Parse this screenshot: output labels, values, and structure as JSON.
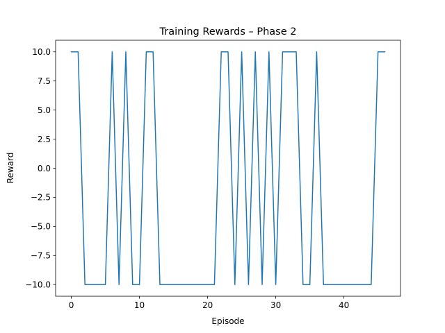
{
  "chart_data": {
    "type": "line",
    "title": "Training Rewards – Phase 2",
    "xlabel": "Episode",
    "ylabel": "Reward",
    "xlim": [
      -2.3,
      48.3
    ],
    "ylim": [
      -11,
      11
    ],
    "xticks": [
      0,
      10,
      20,
      30,
      40
    ],
    "xtick_labels": [
      "0",
      "10",
      "20",
      "30",
      "40"
    ],
    "yticks": [
      -10,
      -7.5,
      -5,
      -2.5,
      0,
      2.5,
      5,
      7.5,
      10
    ],
    "ytick_labels": [
      "−10.0",
      "−7.5",
      "−5.0",
      "−2.5",
      "0.0",
      "2.5",
      "5.0",
      "7.5",
      "10.0"
    ],
    "grid": false,
    "series": [
      {
        "color": "#1f77b4",
        "x": [
          0,
          1,
          2,
          3,
          4,
          5,
          6,
          7,
          8,
          9,
          10,
          11,
          12,
          13,
          14,
          15,
          16,
          17,
          18,
          19,
          20,
          21,
          22,
          23,
          24,
          25,
          26,
          27,
          28,
          29,
          30,
          31,
          32,
          33,
          34,
          35,
          36,
          37,
          38,
          39,
          40,
          41,
          42,
          43,
          44,
          45,
          46
        ],
        "y": [
          10,
          10,
          -10,
          -10,
          -10,
          -10,
          10,
          -10,
          10,
          -10,
          -10,
          10,
          10,
          -10,
          -10,
          -10,
          -10,
          -10,
          -10,
          -10,
          -10,
          -10,
          10,
          10,
          -10,
          10,
          -10,
          10,
          -10,
          10,
          -10,
          10,
          10,
          10,
          -10,
          -10,
          10,
          -10,
          -10,
          -10,
          -10,
          -10,
          -10,
          -10,
          -10,
          10,
          10
        ]
      }
    ]
  }
}
